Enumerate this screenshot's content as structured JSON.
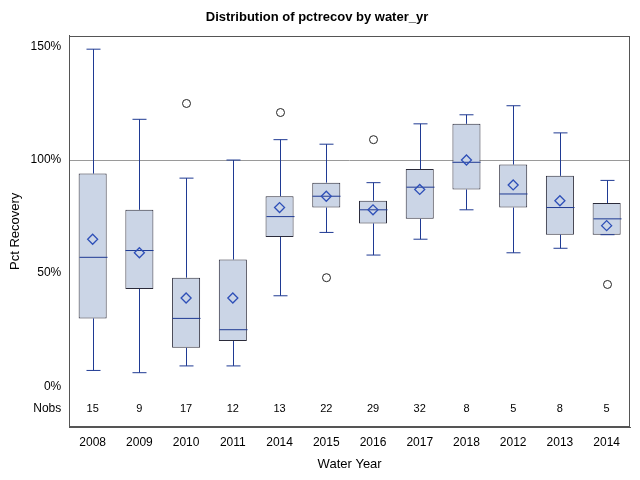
{
  "chart_data": {
    "type": "box",
    "title": "Distribution of pctrecov by water_yr",
    "x_label": "Water Year",
    "y_label": "Pct Recovery",
    "categories": [
      "2008",
      "2009",
      "2010",
      "2011",
      "2014",
      "2015",
      "2016",
      "2017",
      "2018",
      "2012",
      "2013",
      "2014"
    ],
    "boxes": [
      {
        "min": 7,
        "q1": 30,
        "median": 57,
        "mean": 65,
        "q3": 94,
        "max": 149,
        "outliers": [],
        "n": 15
      },
      {
        "min": 6,
        "q1": 43,
        "median": 60,
        "mean": 59,
        "q3": 78,
        "max": 118,
        "outliers": [],
        "n": 9
      },
      {
        "min": 9,
        "q1": 17,
        "median": 30,
        "mean": 39,
        "q3": 48,
        "max": 92,
        "outliers": [
          125
        ],
        "n": 17
      },
      {
        "min": 9,
        "q1": 20,
        "median": 25,
        "mean": 39,
        "q3": 56,
        "max": 100,
        "outliers": [],
        "n": 12
      },
      {
        "min": 40,
        "q1": 66,
        "median": 75,
        "mean": 79,
        "q3": 84,
        "max": 109,
        "outliers": [
          121
        ],
        "n": 13
      },
      {
        "min": 68,
        "q1": 79,
        "median": 84,
        "mean": 84,
        "q3": 90,
        "max": 107,
        "outliers": [
          48
        ],
        "n": 22
      },
      {
        "min": 58,
        "q1": 72,
        "median": 78,
        "mean": 78,
        "q3": 82,
        "max": 90,
        "outliers": [
          109
        ],
        "n": 29
      },
      {
        "min": 65,
        "q1": 74,
        "median": 88,
        "mean": 87,
        "q3": 96,
        "max": 116,
        "outliers": [],
        "n": 32
      },
      {
        "min": 78,
        "q1": 87,
        "median": 99,
        "mean": 100,
        "q3": 116,
        "max": 120,
        "outliers": [],
        "n": 8
      },
      {
        "min": 59,
        "q1": 79,
        "median": 85,
        "mean": 89,
        "q3": 98,
        "max": 124,
        "outliers": [],
        "n": 5
      },
      {
        "min": 61,
        "q1": 67,
        "median": 79,
        "mean": 82,
        "q3": 93,
        "max": 112,
        "outliers": [],
        "n": 8
      },
      {
        "min": 67,
        "q1": 67,
        "median": 74,
        "mean": 71,
        "q3": 81,
        "max": 91,
        "outliers": [
          45
        ],
        "n": 5
      }
    ],
    "n_label": "Nobs",
    "n_row_y": -10,
    "reference_line": 100,
    "color": "#cbd5e6",
    "ylim": [
      -18,
      155
    ],
    "yticks": [
      {
        "value": 0,
        "label": "0%"
      },
      {
        "value": 50,
        "label": "50%"
      },
      {
        "value": 100,
        "label": "100%"
      },
      {
        "value": 150,
        "label": "150%"
      }
    ],
    "grid": false
  }
}
